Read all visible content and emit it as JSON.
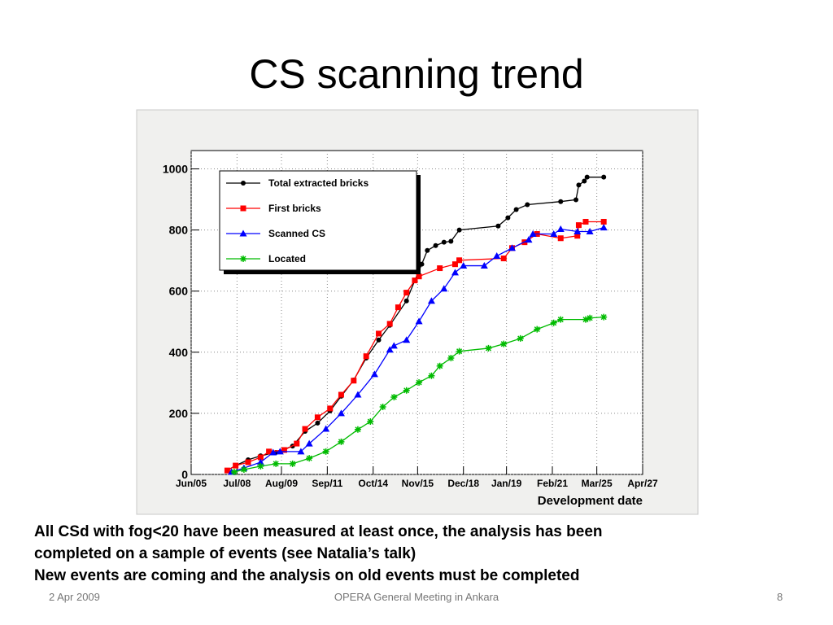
{
  "title": "CS scanning trend",
  "notes": [
    "All CSd with fog<20 have been measured at least once, the analysis has been",
    "completed on a sample of events (see Natalia’s talk)",
    "New events are coming and the analysis on old events must be completed"
  ],
  "footer": {
    "date": "2 Apr 2009",
    "center": "OPERA General Meeting in Ankara",
    "page": "8"
  },
  "chart_data": {
    "type": "line",
    "xlabel": "Development date",
    "xlim": [
      0,
      325
    ],
    "ylim": [
      0,
      1060
    ],
    "xticks": [
      {
        "value": 0,
        "label": "Jun/05"
      },
      {
        "value": 33,
        "label": "Jul/08"
      },
      {
        "value": 65,
        "label": "Aug/09"
      },
      {
        "value": 98,
        "label": "Sep/11"
      },
      {
        "value": 131,
        "label": "Oct/14"
      },
      {
        "value": 163,
        "label": "Nov/15"
      },
      {
        "value": 196,
        "label": "Dec/18"
      },
      {
        "value": 227,
        "label": "Jan/19"
      },
      {
        "value": 260,
        "label": "Feb/21"
      },
      {
        "value": 292,
        "label": "Mar/25"
      },
      {
        "value": 325,
        "label": "Apr/27"
      }
    ],
    "yticks": [
      0,
      200,
      400,
      600,
      800,
      1000
    ],
    "grid": true,
    "legend": "upper left",
    "series": [
      {
        "name": "Total extracted bricks",
        "color": "#000000",
        "marker": "circle",
        "x": [
          26,
          32,
          41,
          50,
          61,
          73,
          82,
          91,
          100,
          108,
          117,
          126,
          135,
          143,
          155,
          161,
          166,
          170,
          176,
          182,
          187,
          193,
          221,
          228,
          234,
          242,
          266,
          277,
          279,
          283,
          285,
          297
        ],
        "values": [
          13,
          29,
          48,
          61,
          72,
          93,
          141,
          168,
          208,
          256,
          309,
          381,
          440,
          488,
          568,
          635,
          688,
          733,
          749,
          760,
          763,
          800,
          813,
          840,
          867,
          883,
          893,
          899,
          947,
          960,
          973,
          973
        ]
      },
      {
        "name": "First bricks",
        "color": "#ff0000",
        "marker": "square",
        "x": [
          26,
          32,
          41,
          50,
          56,
          67,
          76,
          82,
          91,
          100,
          108,
          117,
          126,
          135,
          143,
          149,
          155,
          161,
          164,
          179,
          190,
          193,
          225,
          231,
          240,
          249,
          266,
          278,
          279,
          284,
          297
        ],
        "values": [
          13,
          29,
          40,
          56,
          75,
          80,
          101,
          149,
          187,
          216,
          261,
          307,
          387,
          461,
          493,
          547,
          595,
          635,
          648,
          675,
          688,
          701,
          707,
          741,
          760,
          787,
          773,
          781,
          816,
          827,
          827
        ]
      },
      {
        "name": "Scanned CS",
        "color": "#0000ff",
        "marker": "triangle",
        "x": [
          29,
          38,
          50,
          59,
          64,
          79,
          85,
          97,
          108,
          120,
          132,
          143,
          146,
          155,
          164,
          173,
          182,
          190,
          196,
          211,
          220,
          231,
          243,
          246,
          261,
          266,
          278,
          287,
          297
        ],
        "values": [
          8,
          21,
          40,
          72,
          75,
          75,
          101,
          149,
          200,
          261,
          328,
          408,
          421,
          440,
          501,
          568,
          608,
          661,
          683,
          683,
          715,
          741,
          768,
          787,
          787,
          803,
          795,
          795,
          808
        ]
      },
      {
        "name": "Located",
        "color": "#00bb00",
        "marker": "star",
        "x": [
          31,
          38,
          50,
          61,
          73,
          85,
          97,
          108,
          120,
          129,
          138,
          146,
          155,
          164,
          173,
          179,
          187,
          193,
          214,
          225,
          237,
          249,
          261,
          266,
          284,
          287,
          297
        ],
        "values": [
          8,
          16,
          27,
          35,
          35,
          53,
          75,
          107,
          147,
          173,
          221,
          253,
          275,
          301,
          323,
          355,
          381,
          403,
          413,
          427,
          445,
          475,
          496,
          507,
          507,
          512,
          515
        ]
      }
    ]
  }
}
